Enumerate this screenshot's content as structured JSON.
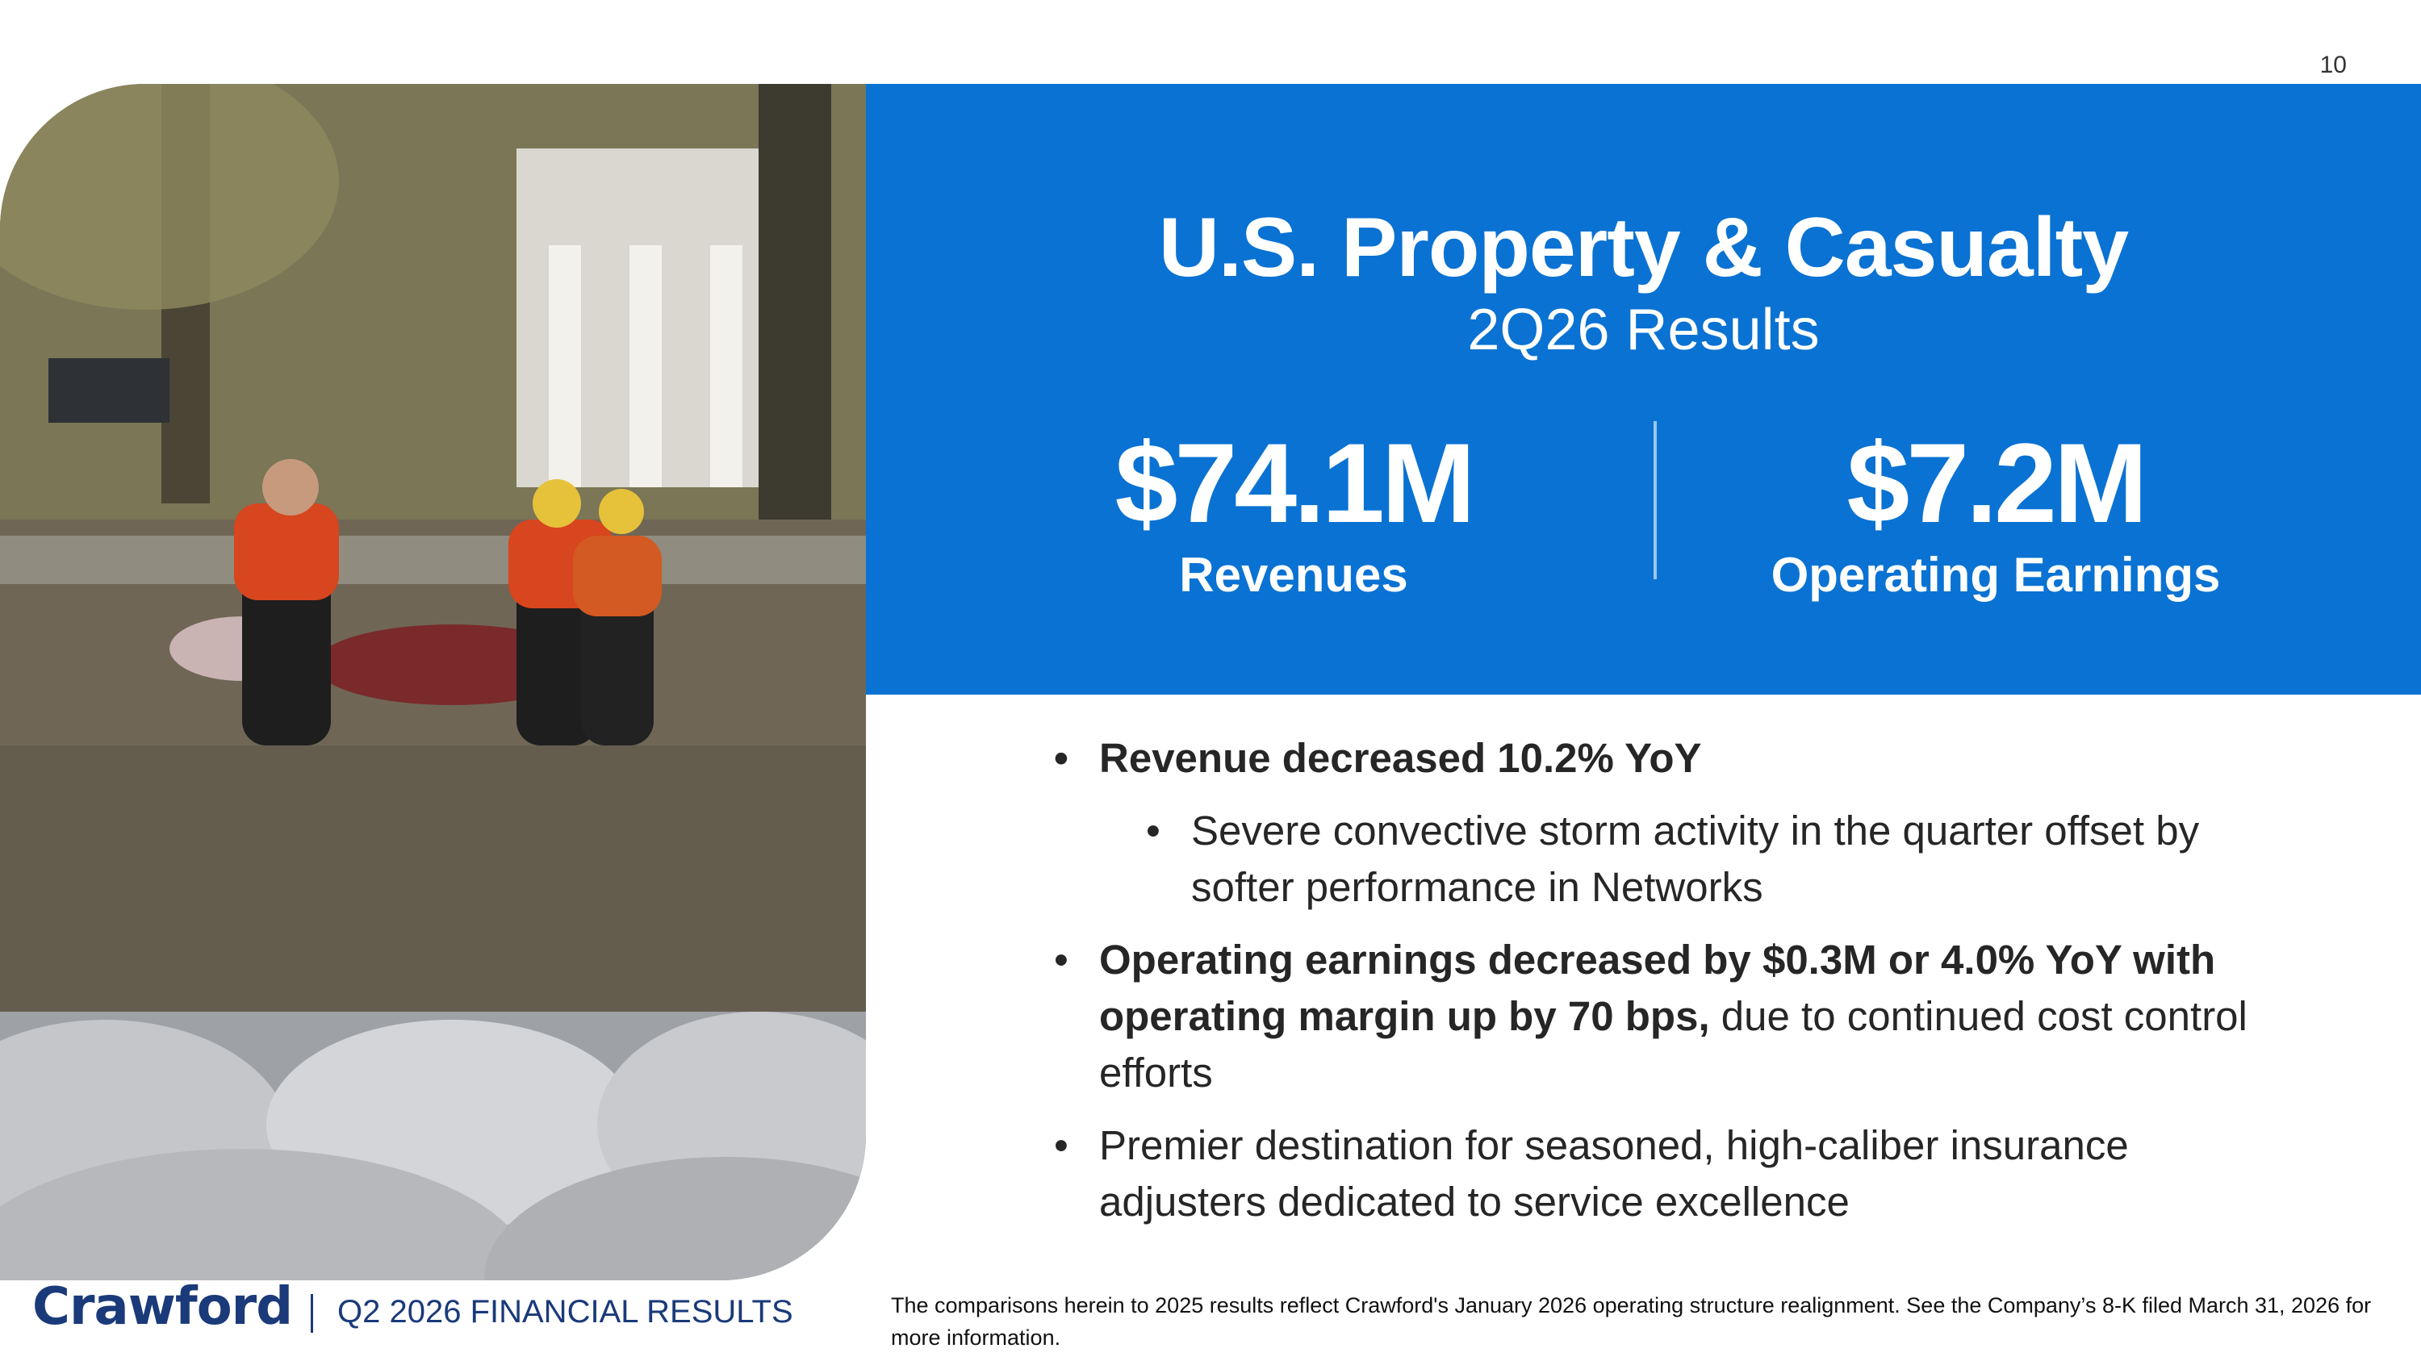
{
  "page_number": "10",
  "hero": {
    "title": "U.S. Property & Casualty",
    "subtitle": "2Q26 Results",
    "metrics": [
      {
        "value": "$74.1M",
        "label": "Revenues"
      },
      {
        "value": "$7.2M",
        "label": "Operating Earnings"
      }
    ]
  },
  "bullets": {
    "b1": "Revenue decreased 10.2% YoY",
    "b1_sub": "Severe convective storm activity in the quarter offset by softer performance in Networks",
    "b2_bold": "Operating earnings decreased by $0.3M or 4.0% YoY with operating margin up by 70 bps,",
    "b2_rest": " due to continued cost control efforts",
    "b3": "Premier destination for seasoned, high-caliber insurance adjusters dedicated to service excellence"
  },
  "footer": {
    "logo": "Crawford",
    "label": "Q2 2026 FINANCIAL RESULTS",
    "footnote": "The comparisons herein to 2025 results reflect Crawford's January 2026 operating structure realignment. See the Company’s 8-K filed March 31, 2026 for more information."
  },
  "colors": {
    "hero_blue": "#0a72d3",
    "brand_navy": "#1a3a7a"
  }
}
